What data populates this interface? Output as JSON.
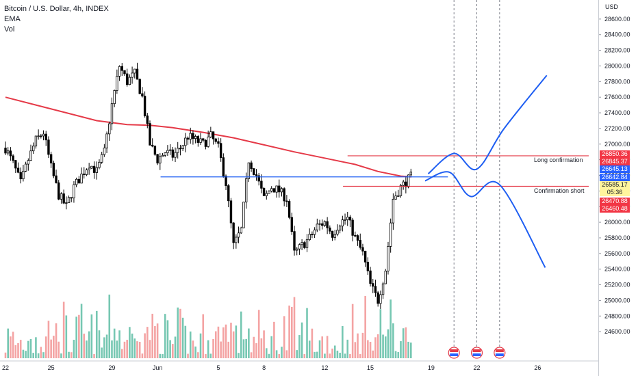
{
  "legend": {
    "title": "Bitcoin / U.S. Dollar, 4h, INDEX",
    "indicator_1": "EMA",
    "indicator_2": "Vol"
  },
  "price_scale": {
    "currency": "USD",
    "tag_labels": [
      "26850.36",
      "26845.37",
      "26645.13",
      "26642.84",
      "26585.17",
      "05:36",
      "26470.88",
      "26460.48"
    ]
  },
  "annotations": {
    "long_label": "Long confirmation",
    "short_label": "Confirmation short"
  },
  "colors": {
    "up_candle": "#ffffff",
    "down_candle": "#000000",
    "ema": "#e53a48",
    "trend_lines": "#1e5ef2",
    "resistance_lines": "#e53a48",
    "vol_up": "#76c7b2",
    "vol_down": "#f4a3a3",
    "tag_red": "#f23645",
    "tag_blue": "#2962ff",
    "tag_yellow": "#fff59d"
  },
  "chart_data": {
    "type": "candlestick",
    "title": "Bitcoin / U.S. Dollar, 4h, INDEX",
    "ylabel": "USD",
    "ylim": [
      24400,
      28800
    ],
    "y_ticks": [
      24600,
      24800,
      25000,
      25200,
      25400,
      25600,
      25800,
      26000,
      26200,
      26400,
      26600,
      26800,
      27000,
      27200,
      27400,
      27600,
      27800,
      28000,
      28200,
      28400,
      28600
    ],
    "y_tick_labels": [
      "24600.00",
      "24800.00",
      "25000.00",
      "25200.00",
      "25400.00",
      "25600.00",
      "25800.00",
      "26000.00",
      "26200.00",
      "26400.00",
      "26600.00",
      "26800.00",
      "27000.00",
      "27200.00",
      "27400.00",
      "27600.00",
      "27800.00",
      "28000.00",
      "28200.00",
      "28400.00",
      "28600.00"
    ],
    "x_tick_labels": [
      "22",
      "25",
      "29",
      "Jun",
      "5",
      "8",
      "12",
      "15",
      "19",
      "22",
      "26"
    ],
    "x_tick_days": [
      0,
      3,
      7,
      10,
      14,
      17,
      21,
      24,
      28,
      31,
      35
    ],
    "last_day": 26.7,
    "total_days": 38.0,
    "close_path": [
      [
        0.0,
        26950
      ],
      [
        0.5,
        26750
      ],
      [
        1.0,
        26500
      ],
      [
        1.5,
        26800
      ],
      [
        2.0,
        27050
      ],
      [
        2.5,
        27150
      ],
      [
        3.0,
        26700
      ],
      [
        3.5,
        26350
      ],
      [
        4.0,
        26200
      ],
      [
        4.5,
        26450
      ],
      [
        5.0,
        26600
      ],
      [
        5.5,
        26750
      ],
      [
        6.0,
        26650
      ],
      [
        6.5,
        26900
      ],
      [
        7.0,
        27500
      ],
      [
        7.5,
        28000
      ],
      [
        8.0,
        27800
      ],
      [
        8.5,
        27900
      ],
      [
        9.0,
        27600
      ],
      [
        9.5,
        27000
      ],
      [
        10.0,
        26800
      ],
      [
        10.5,
        26900
      ],
      [
        11.0,
        26850
      ],
      [
        11.5,
        26950
      ],
      [
        12.0,
        27100
      ],
      [
        12.5,
        27050
      ],
      [
        13.0,
        27000
      ],
      [
        13.5,
        27100
      ],
      [
        14.0,
        26950
      ],
      [
        14.5,
        26500
      ],
      [
        15.0,
        25700
      ],
      [
        15.5,
        25900
      ],
      [
        16.0,
        26800
      ],
      [
        16.5,
        26600
      ],
      [
        17.0,
        26300
      ],
      [
        17.5,
        26450
      ],
      [
        18.0,
        26400
      ],
      [
        18.5,
        26300
      ],
      [
        19.0,
        25600
      ],
      [
        19.5,
        25700
      ],
      [
        20.0,
        25800
      ],
      [
        20.5,
        25950
      ],
      [
        21.0,
        26000
      ],
      [
        21.5,
        25850
      ],
      [
        22.0,
        26000
      ],
      [
        22.5,
        26050
      ],
      [
        23.0,
        25800
      ],
      [
        23.5,
        25600
      ],
      [
        24.0,
        25200
      ],
      [
        24.5,
        25000
      ],
      [
        25.0,
        25400
      ],
      [
        25.5,
        26300
      ],
      [
        26.0,
        26450
      ],
      [
        26.7,
        26585
      ]
    ],
    "ema_path": [
      [
        0.0,
        27600
      ],
      [
        2.0,
        27500
      ],
      [
        4.0,
        27400
      ],
      [
        6.0,
        27300
      ],
      [
        8.0,
        27250
      ],
      [
        9.5,
        27240
      ],
      [
        11.0,
        27210
      ],
      [
        13.0,
        27150
      ],
      [
        15.0,
        27080
      ],
      [
        17.0,
        26990
      ],
      [
        19.0,
        26900
      ],
      [
        21.0,
        26820
      ],
      [
        23.0,
        26740
      ],
      [
        24.5,
        26650
      ],
      [
        26.0,
        26590
      ],
      [
        26.7,
        26580
      ]
    ],
    "annotations": {
      "long_confirmation_price": 26850,
      "confirmation_short_price": 26460,
      "blue_level_price": 26580,
      "projection_up_path": [
        [
          27.8,
          26620
        ],
        [
          29.5,
          26880
        ],
        [
          31.0,
          26680
        ],
        [
          32.8,
          27200
        ],
        [
          35.6,
          27880
        ]
      ],
      "projection_down_path": [
        [
          27.6,
          26530
        ],
        [
          29.2,
          26640
        ],
        [
          30.6,
          26330
        ],
        [
          32.5,
          26480
        ],
        [
          35.5,
          25420
        ]
      ],
      "event_days": [
        29.5,
        31.0,
        32.5
      ]
    }
  }
}
